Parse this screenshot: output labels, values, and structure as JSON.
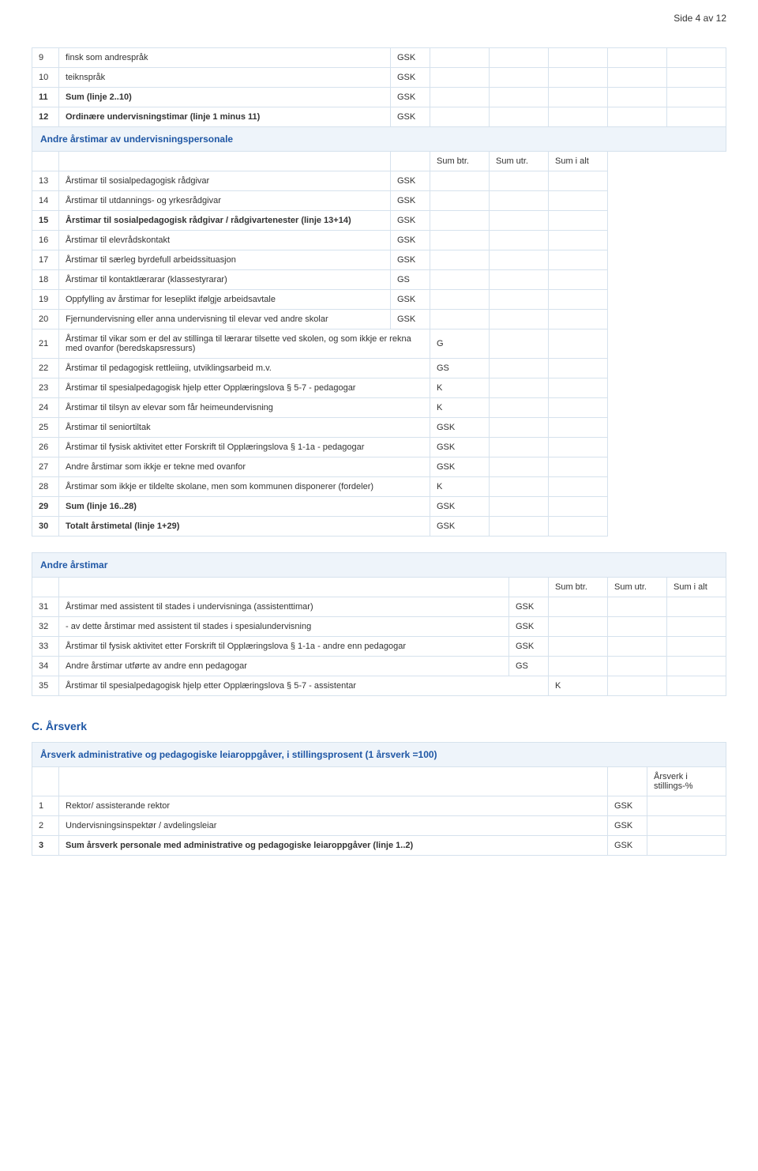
{
  "page_header": "Side 4 av 12",
  "tags": {
    "gsk": "GSK",
    "gs": "GS",
    "g": "G",
    "k": "K"
  },
  "cols": {
    "btr": "Sum btr.",
    "utr": "Sum utr.",
    "ialt": "Sum i alt"
  },
  "arsverk_col": {
    "label": "Årsverk i stillings-%"
  },
  "section_headers": {
    "andre_undervis": "Andre årstimar av undervisningspersonale",
    "andre_arstimar": "Andre årstimar",
    "c_title": "C. Årsverk",
    "c_sub": "Årsverk administrative og pedagogiske leiaroppgåver, i stillingsprosent (1 årsverk =100)"
  },
  "top_rows": [
    {
      "n": "9",
      "t": "finsk som andrespråk",
      "c": "gsk",
      "bold": false
    },
    {
      "n": "10",
      "t": "teiknspråk",
      "c": "gsk",
      "bold": false
    },
    {
      "n": "11",
      "t": "Sum (linje 2..10)",
      "c": "gsk",
      "bold": true
    },
    {
      "n": "12",
      "t": "Ordinære undervisningstimar (linje 1 minus 11)",
      "c": "gsk",
      "bold": true
    }
  ],
  "mid_rows": [
    {
      "n": "13",
      "t": "Årstimar til sosialpedagogisk rådgivar",
      "c": "gsk",
      "right_cols": 3,
      "bold": false
    },
    {
      "n": "14",
      "t": "Årstimar til utdannings- og yrkesrådgivar",
      "c": "gsk",
      "right_cols": 3,
      "bold": false
    },
    {
      "n": "15",
      "t": "Årstimar til sosialpedagogisk rådgivar / rådgivartenester (linje 13+14)",
      "c": "gsk",
      "right_cols": 3,
      "bold": true
    },
    {
      "n": "16",
      "t": "Årstimar til elevrådskontakt",
      "c": "gsk",
      "right_cols": 3,
      "bold": false
    },
    {
      "n": "17",
      "t": "Årstimar til særleg byrdefull arbeidssituasjon",
      "c": "gsk",
      "right_cols": 3,
      "bold": false
    },
    {
      "n": "18",
      "t": "Årstimar til kontaktlærarar (klassestyrarar)",
      "c": "gs",
      "right_cols": 3,
      "bold": false
    },
    {
      "n": "19",
      "t": "Oppfylling av årstimar for leseplikt ifølgje arbeidsavtale",
      "c": "gsk",
      "right_cols": 3,
      "bold": false
    },
    {
      "n": "20",
      "t": "Fjernundervisning eller anna undervisning til elevar ved andre skolar",
      "c": "gsk",
      "right_cols": 3,
      "bold": false
    },
    {
      "n": "21",
      "t": "Årstimar til vikar som er del av stillinga til lærarar tilsette ved skolen, og som ikkje er rekna med ovanfor (beredskapsressurs)",
      "c": "g",
      "right_cols": 2,
      "bold": false
    },
    {
      "n": "22",
      "t": "Årstimar til pedagogisk rettleiing, utviklingsarbeid m.v.",
      "c": "gs",
      "right_cols": 2,
      "bold": false
    },
    {
      "n": "23",
      "t": "Årstimar til spesialpedagogisk hjelp etter Opplæringslova § 5-7 - pedagogar",
      "c": "k",
      "right_cols": 2,
      "bold": false
    },
    {
      "n": "24",
      "t": "Årstimar til tilsyn av elevar som får heimeundervisning",
      "c": "k",
      "right_cols": 2,
      "bold": false
    },
    {
      "n": "25",
      "t": "Årstimar til seniortiltak",
      "c": "gsk",
      "right_cols": 2,
      "bold": false
    },
    {
      "n": "26",
      "t": "Årstimar til fysisk aktivitet etter Forskrift til Opplæringslova § 1-1a - pedagogar",
      "c": "gsk",
      "right_cols": 2,
      "bold": false
    },
    {
      "n": "27",
      "t": "Andre årstimar som ikkje er tekne med ovanfor",
      "c": "gsk",
      "right_cols": 2,
      "bold": false
    },
    {
      "n": "28",
      "t": "Årstimar som ikkje er tildelte skolane, men som kommunen disponerer (fordeler)",
      "c": "k",
      "right_cols": 2,
      "bold": false
    },
    {
      "n": "29",
      "t": "Sum (linje 16..28)",
      "c": "gsk",
      "right_cols": 2,
      "bold": true
    },
    {
      "n": "30",
      "t": "Totalt årstimetal (linje 1+29)",
      "c": "gsk",
      "right_cols": 2,
      "bold": true
    }
  ],
  "andre_rows": [
    {
      "n": "31",
      "t": "Årstimar med assistent til stades i undervisninga (assistenttimar)",
      "c": "gsk",
      "right_cols": 3,
      "bold": false
    },
    {
      "n": "32",
      "t": "- av dette årstimar med assistent til stades i spesialundervisning",
      "c": "gsk",
      "right_cols": 3,
      "bold": false
    },
    {
      "n": "33",
      "t": "Årstimar til fysisk aktivitet etter Forskrift til Opplæringslova § 1-1a - andre enn pedagogar",
      "c": "gsk",
      "right_cols": 3,
      "bold": false
    },
    {
      "n": "34",
      "t": "Andre årstimar utførte av andre enn pedagogar",
      "c": "gs",
      "right_cols": 3,
      "bold": false
    },
    {
      "n": "35",
      "t": "Årstimar til spesialpedagogisk hjelp etter Opplæringslova § 5-7 - assistentar",
      "c": "k",
      "right_cols": 2,
      "bold": false
    }
  ],
  "arsverk_rows": [
    {
      "n": "1",
      "t": "Rektor/ assisterande rektor",
      "c": "gsk",
      "bold": false
    },
    {
      "n": "2",
      "t": "Undervisningsinspektør / avdelingsleiar",
      "c": "gsk",
      "bold": false
    },
    {
      "n": "3",
      "t": "Sum årsverk personale med administrative og pedagogiske leiaroppgåver (linje 1..2)",
      "c": "gsk",
      "bold": true
    }
  ]
}
